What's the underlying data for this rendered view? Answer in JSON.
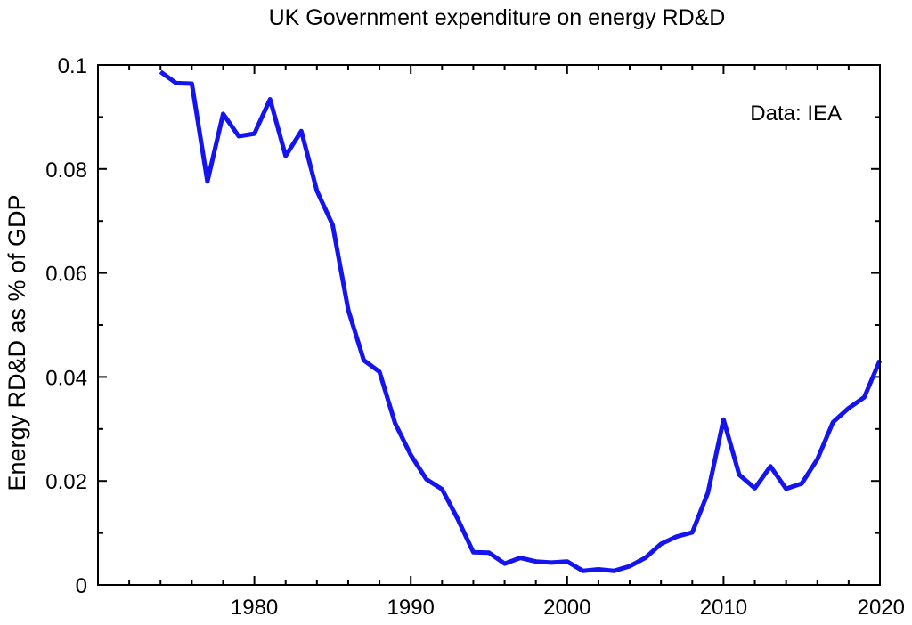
{
  "chart_data": {
    "type": "line",
    "title": "UK Government expenditure on energy RD&D",
    "xlabel": "",
    "ylabel": "Energy RD&D as % of GDP",
    "annotation": "Data: IEA",
    "xlim": [
      1970,
      2020
    ],
    "ylim": [
      0,
      0.1
    ],
    "x_ticks": [
      1980,
      1990,
      2000,
      2010,
      2020
    ],
    "x_tick_labels": [
      "1980",
      "1990",
      "2000",
      "2010",
      "2020"
    ],
    "y_ticks": [
      0,
      0.02,
      0.04,
      0.06,
      0.08,
      0.1
    ],
    "y_tick_labels": [
      "0",
      "0.02",
      "0.04",
      "0.06",
      "0.08",
      "0.1"
    ],
    "grid": false,
    "series": [
      {
        "color": "#1414f0",
        "x": [
          1974,
          1975,
          1976,
          1977,
          1978,
          1979,
          1980,
          1981,
          1982,
          1983,
          1984,
          1985,
          1986,
          1987,
          1988,
          1989,
          1990,
          1991,
          1992,
          1993,
          1994,
          1995,
          1996,
          1997,
          1998,
          1999,
          2000,
          2001,
          2002,
          2003,
          2004,
          2005,
          2006,
          2007,
          2008,
          2009,
          2010,
          2011,
          2012,
          2013,
          2014,
          2015,
          2016,
          2017,
          2018,
          2019,
          2020
        ],
        "y": [
          0.0987,
          0.0965,
          0.0964,
          0.0776,
          0.0906,
          0.0863,
          0.0868,
          0.0934,
          0.0825,
          0.0873,
          0.0758,
          0.0693,
          0.0529,
          0.0432,
          0.041,
          0.0311,
          0.025,
          0.0203,
          0.0184,
          0.0127,
          0.0063,
          0.0062,
          0.0041,
          0.0052,
          0.0045,
          0.0043,
          0.0045,
          0.0027,
          0.003,
          0.0027,
          0.0036,
          0.0052,
          0.0079,
          0.0093,
          0.0101,
          0.0177,
          0.0318,
          0.0212,
          0.0186,
          0.0228,
          0.0185,
          0.0195,
          0.0242,
          0.0313,
          0.034,
          0.0361,
          0.0432
        ]
      }
    ]
  }
}
